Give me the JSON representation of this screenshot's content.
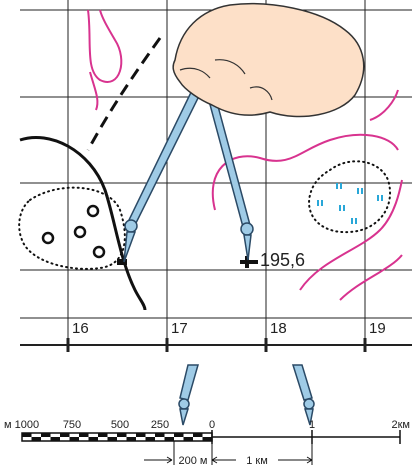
{
  "grid_labels": [
    "16",
    "17",
    "18",
    "19"
  ],
  "elevation": "195,6",
  "scale": {
    "labels": [
      "м 1000",
      "750",
      "500",
      "250",
      "0",
      "1",
      "2км"
    ],
    "measures": [
      "200 м",
      "1 км"
    ]
  }
}
